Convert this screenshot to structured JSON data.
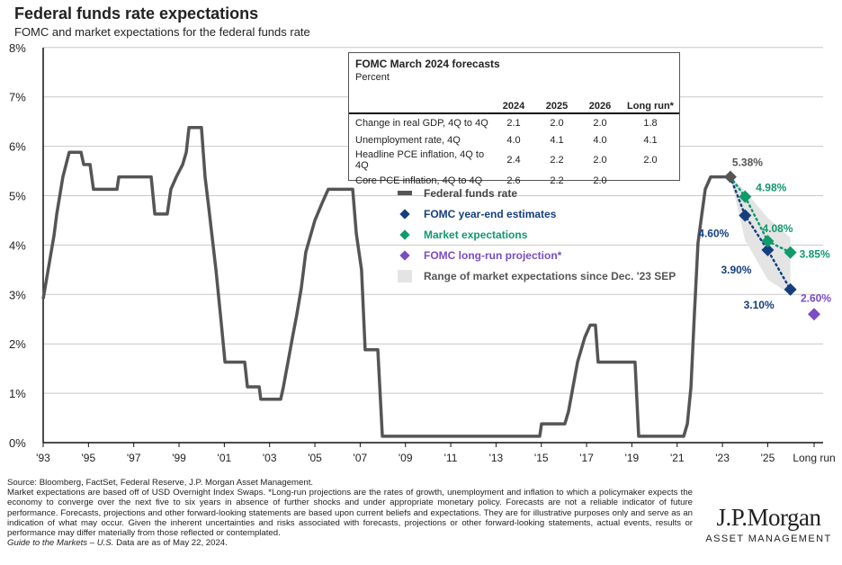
{
  "title": "Federal funds rate expectations",
  "subtitle": "FOMC and market expectations for the federal funds rate",
  "colors": {
    "fed": "#555555",
    "fomc": "#143f7f",
    "market": "#0f9a6a",
    "longrun": "#7a4cc4",
    "range": "#e4e4e4"
  },
  "table": {
    "title": "FOMC March 2024 forecasts",
    "unit": "Percent",
    "headers": [
      "2024",
      "2025",
      "2026",
      "Long run*"
    ],
    "rows": [
      {
        "label": "Change in real GDP, 4Q to 4Q",
        "values": [
          "2.1",
          "2.0",
          "2.0",
          "1.8"
        ]
      },
      {
        "label": "Unemployment rate, 4Q",
        "values": [
          "4.0",
          "4.1",
          "4.0",
          "4.1"
        ]
      },
      {
        "label": "Headline PCE inflation, 4Q to 4Q",
        "values": [
          "2.4",
          "2.2",
          "2.0",
          "2.0"
        ]
      },
      {
        "label": "Core PCE inflation, 4Q to 4Q",
        "values": [
          "2.6",
          "2.2",
          "2.0",
          ""
        ]
      }
    ]
  },
  "legend": [
    "Federal funds rate",
    "FOMC year-end estimates",
    "Market expectations",
    "FOMC long-run projection*",
    "Range of market expectations since Dec. '23 SEP"
  ],
  "chart_data": {
    "type": "line",
    "ylim": [
      0,
      8
    ],
    "yticks": [
      "0%",
      "1%",
      "2%",
      "3%",
      "4%",
      "5%",
      "6%",
      "7%",
      "8%"
    ],
    "xlim": [
      1993,
      2027.5
    ],
    "xticks": [
      "'93",
      "'95",
      "'97",
      "'99",
      "'01",
      "'03",
      "'05",
      "'07",
      "'09",
      "'11",
      "'13",
      "'15",
      "'17",
      "'19",
      "'21",
      "'23",
      "'25",
      "Long run"
    ],
    "grid": "horizontal",
    "legend_placement": "center-right",
    "series": [
      {
        "name": "Federal funds rate",
        "type": "line",
        "points": [
          [
            1993.0,
            2.91
          ],
          [
            1993.48,
            4.2
          ],
          [
            1993.6,
            4.63
          ],
          [
            1993.87,
            5.38
          ],
          [
            1994.15,
            5.88
          ],
          [
            1994.67,
            5.88
          ],
          [
            1994.79,
            5.63
          ],
          [
            1995.07,
            5.63
          ],
          [
            1995.22,
            5.13
          ],
          [
            1996.26,
            5.13
          ],
          [
            1996.34,
            5.38
          ],
          [
            1997.77,
            5.38
          ],
          [
            1997.93,
            4.63
          ],
          [
            1998.48,
            4.63
          ],
          [
            1998.64,
            5.13
          ],
          [
            1998.88,
            5.38
          ],
          [
            1999.16,
            5.63
          ],
          [
            1999.32,
            5.88
          ],
          [
            1999.44,
            6.38
          ],
          [
            1999.99,
            6.38
          ],
          [
            2000.15,
            5.38
          ],
          [
            2000.31,
            4.77
          ],
          [
            2000.63,
            3.5
          ],
          [
            2000.87,
            2.4
          ],
          [
            2001.03,
            1.63
          ],
          [
            2001.9,
            1.63
          ],
          [
            2002.02,
            1.13
          ],
          [
            2002.54,
            1.13
          ],
          [
            2002.61,
            0.88
          ],
          [
            2003.49,
            0.88
          ],
          [
            2003.61,
            1.13
          ],
          [
            2003.81,
            1.63
          ],
          [
            2004.01,
            2.13
          ],
          [
            2004.2,
            2.59
          ],
          [
            2004.4,
            3.13
          ],
          [
            2004.6,
            3.86
          ],
          [
            2005.0,
            4.5
          ],
          [
            2005.32,
            4.85
          ],
          [
            2005.59,
            5.13
          ],
          [
            2006.67,
            5.13
          ],
          [
            2006.83,
            4.23
          ],
          [
            2007.06,
            3.5
          ],
          [
            2007.22,
            1.88
          ],
          [
            2007.78,
            1.88
          ],
          [
            2007.98,
            0.13
          ],
          [
            2014.93,
            0.13
          ],
          [
            2015.01,
            0.38
          ],
          [
            2016.04,
            0.38
          ],
          [
            2016.2,
            0.63
          ],
          [
            2016.4,
            1.13
          ],
          [
            2016.6,
            1.63
          ],
          [
            2016.92,
            2.13
          ],
          [
            2017.16,
            2.38
          ],
          [
            2017.39,
            2.38
          ],
          [
            2017.51,
            1.63
          ],
          [
            2019.14,
            1.63
          ],
          [
            2019.3,
            0.13
          ],
          [
            2021.29,
            0.13
          ],
          [
            2021.45,
            0.38
          ],
          [
            2021.61,
            1.13
          ],
          [
            2021.76,
            2.59
          ],
          [
            2021.92,
            4.04
          ],
          [
            2022.08,
            4.59
          ],
          [
            2022.24,
            5.13
          ],
          [
            2022.48,
            5.38
          ],
          [
            2023.35,
            5.38
          ]
        ]
      },
      {
        "name": "FOMC year-end estimates",
        "type": "scatter",
        "points": [
          [
            2023.35,
            5.38
          ],
          [
            2024,
            4.6
          ],
          [
            2025,
            3.9
          ],
          [
            2026,
            3.1
          ]
        ],
        "labels": [
          "5.38%",
          "4.60%",
          "3.90%",
          "3.10%"
        ]
      },
      {
        "name": "Market expectations",
        "type": "scatter",
        "points": [
          [
            2024,
            4.98
          ],
          [
            2025,
            4.08
          ],
          [
            2026,
            3.85
          ]
        ],
        "labels": [
          "4.98%",
          "4.08%",
          "3.85%"
        ]
      },
      {
        "name": "FOMC long-run projection*",
        "type": "scatter",
        "points": [
          [
            "Long run",
            2.6
          ]
        ],
        "labels": [
          "2.60%"
        ]
      },
      {
        "name": "Range of market expectations since Dec. '23 SEP",
        "type": "area",
        "upper": [
          [
            2023.35,
            5.38
          ],
          [
            2024,
            5.1
          ],
          [
            2025,
            4.55
          ],
          [
            2026,
            4.15
          ]
        ],
        "lower": [
          [
            2023.35,
            5.38
          ],
          [
            2024,
            4.1
          ],
          [
            2025,
            3.3
          ],
          [
            2026,
            3.0
          ]
        ]
      }
    ]
  },
  "footer": {
    "source": "Source: Bloomberg, FactSet, Federal Reserve, J.P. Morgan Asset Management.",
    "note": "Market expectations are based off of USD Overnight Index Swaps. *Long-run projections are the rates of growth, unemployment and inflation to which a policymaker expects the economy to converge over the next five to six years in absence of further shocks and under appropriate monetary policy. Forecasts are not a reliable indicator of future performance. Forecasts, projections and other forward-looking statements are based upon current beliefs and expectations. They are for illustrative purposes only and serve as an indication of what may occur. Given the inherent uncertainties and risks associated with forecasts, projections or other forward-looking statements, actual events, results or performance may differ materially from those reflected or contemplated.",
    "guide": "Guide to the Markets – U.S.",
    "asof": "Data are as of May 22, 2024."
  },
  "logo": {
    "name": "J.P.Morgan",
    "sub": "ASSET MANAGEMENT"
  }
}
